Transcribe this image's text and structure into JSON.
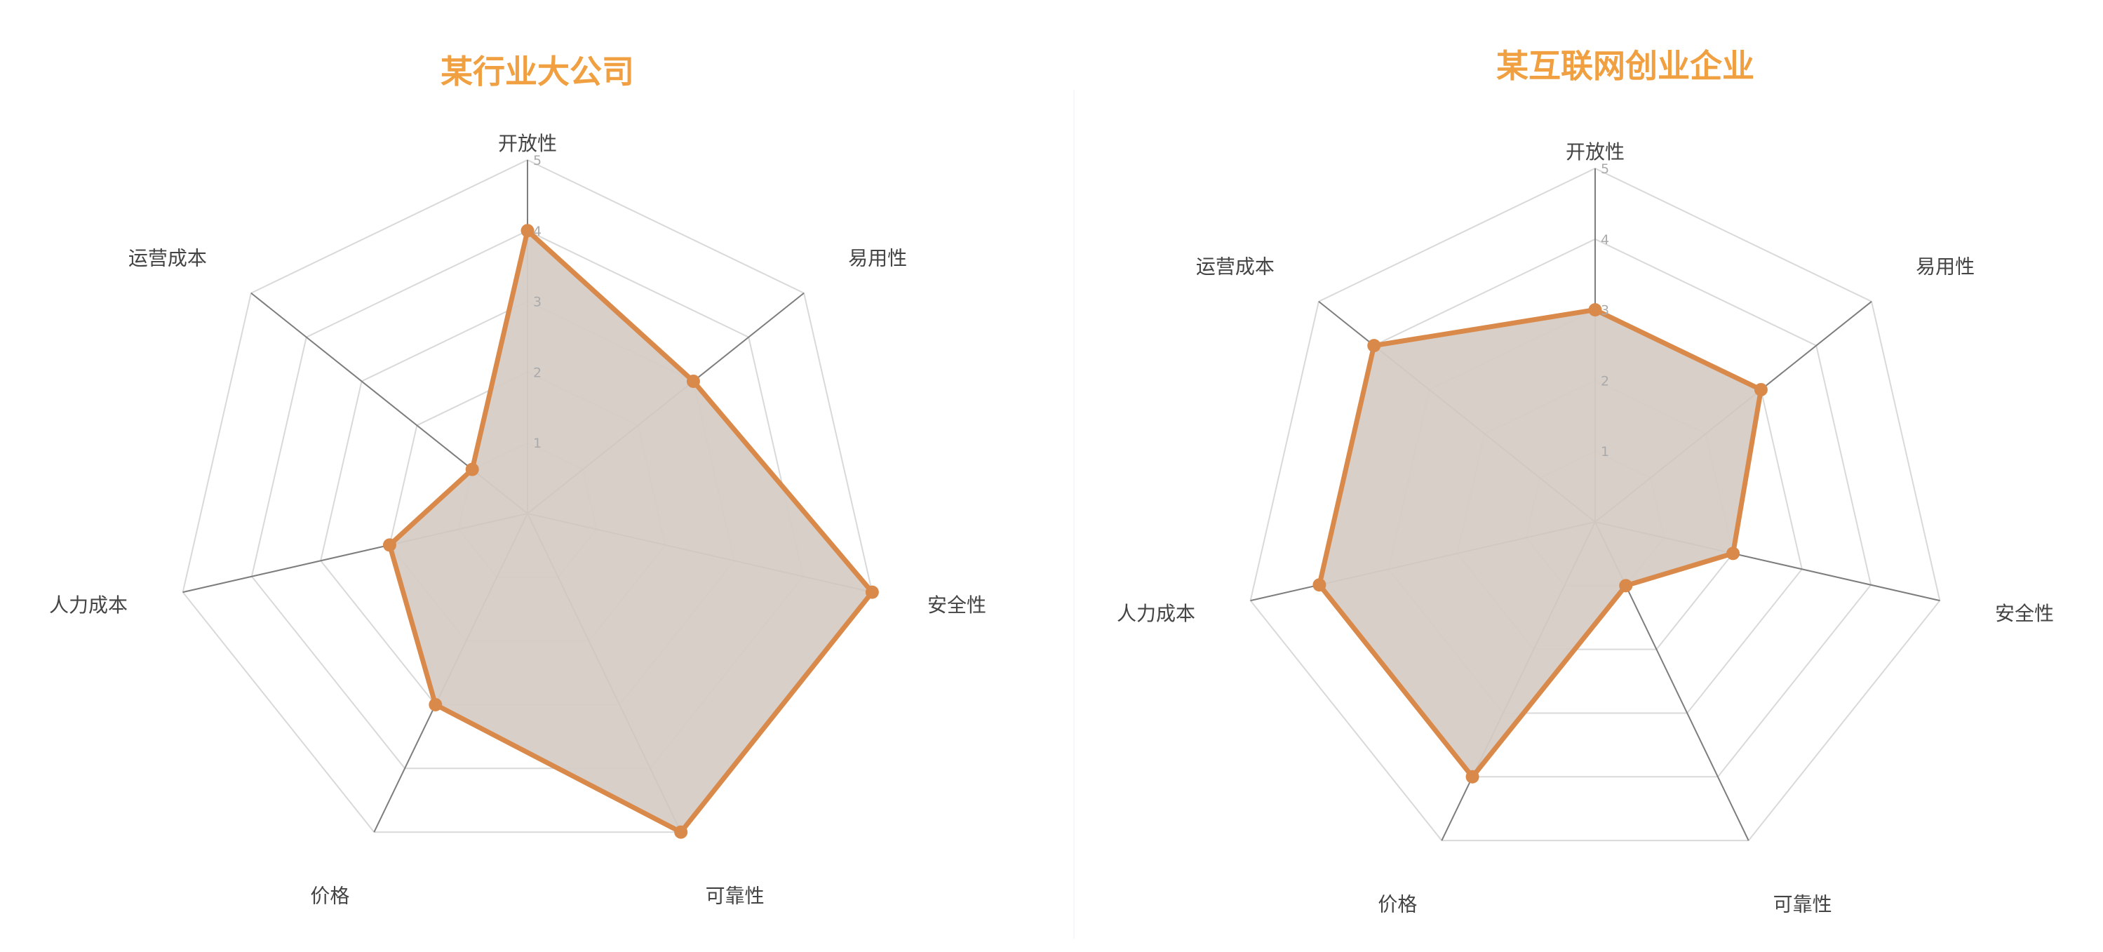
{
  "chart_data": [
    {
      "type": "radar",
      "title": "某行业大公司",
      "axes": [
        "开放性",
        "易用性",
        "安全性",
        "可靠性",
        "价格",
        "人力成本",
        "运营成本"
      ],
      "values": [
        4,
        3,
        5,
        5,
        3,
        2,
        1
      ],
      "rmax": 5,
      "ticks": [
        "1",
        "2",
        "3",
        "4",
        "5"
      ],
      "grid": true,
      "legend": "none"
    },
    {
      "type": "radar",
      "title": "某互联网创业企业",
      "axes": [
        "开放性",
        "易用性",
        "安全性",
        "可靠性",
        "价格",
        "人力成本",
        "运营成本"
      ],
      "values": [
        3,
        3,
        2,
        1,
        4,
        4,
        4
      ],
      "rmax": 5,
      "ticks": [
        "1",
        "2",
        "3",
        "4",
        "5"
      ],
      "grid": true,
      "legend": "none"
    }
  ],
  "colors": {
    "title": "#f0a040",
    "series_line": "#d9894a",
    "series_fill": "#d6ccc6",
    "axis_line": "#7d7d7d",
    "grid_line": "#d9d9d9"
  }
}
